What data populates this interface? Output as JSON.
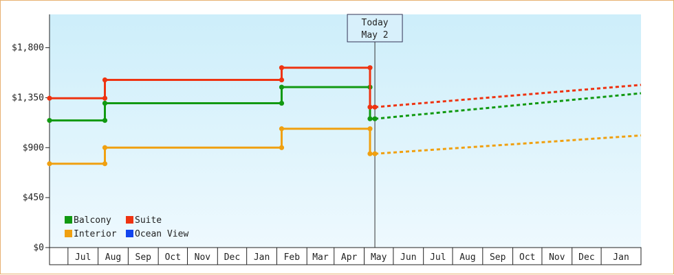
{
  "chart_data": {
    "type": "line",
    "title": "",
    "xlabel": "",
    "ylabel": "",
    "ylim": [
      0,
      2100
    ],
    "y_ticks": [
      0,
      450,
      900,
      1350,
      1800
    ],
    "y_tick_labels": [
      "$0",
      "$450",
      "$900",
      "$1,350",
      "$1,800"
    ],
    "x_range": [
      "2023-06-01",
      "2024-01-31"
    ],
    "x_tick_labels": [
      "Jul",
      "Aug",
      "Sep",
      "Oct",
      "Nov",
      "Dec",
      "Jan",
      "Feb",
      "Mar",
      "Apr",
      "May",
      "Jun",
      "Jul",
      "Aug",
      "Sep",
      "Oct",
      "Nov",
      "Dec",
      "Jan"
    ],
    "today_marker": {
      "line1": "Today",
      "line2": "May 2",
      "x": "2023-05-02"
    },
    "grid": false,
    "legend_position": "bottom-left",
    "series": [
      {
        "name": "Balcony",
        "color": "#119911",
        "style": "historical",
        "points": [
          [
            "2022-06-01",
            1145
          ],
          [
            "2022-07-28",
            1145
          ],
          [
            "2022-07-28",
            1300
          ],
          [
            "2023-01-26",
            1300
          ],
          [
            "2023-01-26",
            1445
          ],
          [
            "2023-04-27",
            1445
          ],
          [
            "2023-04-27",
            1160
          ],
          [
            "2023-05-02",
            1160
          ]
        ],
        "forecast": [
          [
            "2023-05-02",
            1160
          ],
          [
            "2024-01-31",
            1390
          ]
        ]
      },
      {
        "name": "Suite",
        "color": "#ee3311",
        "style": "historical",
        "points": [
          [
            "2022-06-01",
            1345
          ],
          [
            "2022-07-28",
            1345
          ],
          [
            "2022-07-28",
            1510
          ],
          [
            "2023-01-26",
            1510
          ],
          [
            "2023-01-26",
            1620
          ],
          [
            "2023-04-27",
            1620
          ],
          [
            "2023-04-27",
            1265
          ],
          [
            "2023-05-02",
            1265
          ]
        ],
        "forecast": [
          [
            "2023-05-02",
            1265
          ],
          [
            "2024-01-31",
            1465
          ]
        ]
      },
      {
        "name": "Interior",
        "color": "#f0a010",
        "style": "historical",
        "points": [
          [
            "2022-06-01",
            755
          ],
          [
            "2022-07-28",
            755
          ],
          [
            "2022-07-28",
            900
          ],
          [
            "2023-01-26",
            900
          ],
          [
            "2023-01-26",
            1070
          ],
          [
            "2023-04-27",
            1070
          ],
          [
            "2023-04-27",
            845
          ],
          [
            "2023-05-02",
            845
          ]
        ],
        "forecast": [
          [
            "2023-05-02",
            845
          ],
          [
            "2024-01-31",
            1010
          ]
        ]
      },
      {
        "name": "Ocean View",
        "color": "#1144ee",
        "style": "historical",
        "points": [],
        "forecast": []
      }
    ]
  }
}
